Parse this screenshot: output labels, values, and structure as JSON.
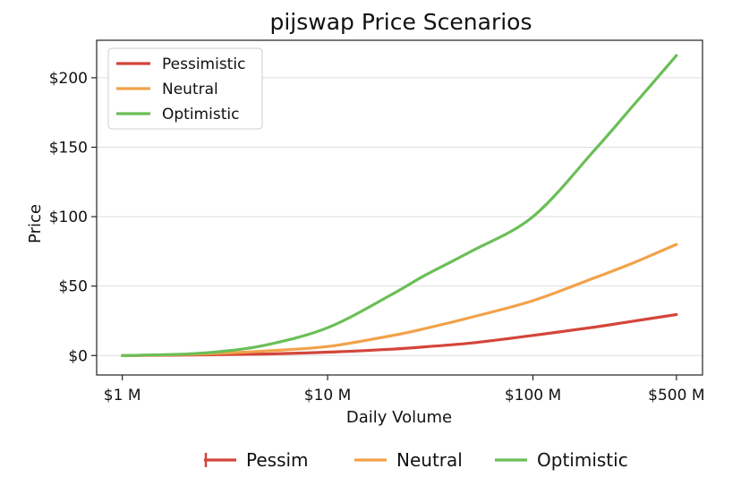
{
  "chart_data": {
    "type": "line",
    "title": "pijswap Price Scenarios",
    "xlabel": "Daily Volume",
    "ylabel": "Price",
    "x_scale": "log",
    "x_ticks": [
      {
        "value": 1,
        "label": "$1 M"
      },
      {
        "value": 10,
        "label": "$10 M"
      },
      {
        "value": 100,
        "label": "$100 M"
      },
      {
        "value": 500,
        "label": "$500 M"
      }
    ],
    "y_ticks": [
      {
        "value": 0,
        "label": "$0"
      },
      {
        "value": 50,
        "label": "$50"
      },
      {
        "value": 100,
        "label": "$100"
      },
      {
        "value": 150,
        "label": "$150"
      },
      {
        "value": 200,
        "label": "$200"
      }
    ],
    "ylim": [
      -14,
      227
    ],
    "xlim": [
      0.75,
      670
    ],
    "grid": "horizontal",
    "legend_position": "top-left",
    "x": [
      1,
      2,
      3,
      5,
      10,
      20,
      30,
      50,
      100,
      200,
      300,
      500
    ],
    "series": [
      {
        "name": "Pessimistic",
        "color": "#d4453a",
        "values": [
          0,
          0.3,
          0.6,
          1.1,
          2.4,
          4.5,
          6.3,
          9.0,
          14.5,
          20.5,
          24.5,
          29.5
        ]
      },
      {
        "name": "Neutral",
        "color": "#f2a24a",
        "values": [
          0,
          0.7,
          1.6,
          3.3,
          6.5,
          14,
          19.5,
          27.5,
          39.5,
          56,
          66,
          80
        ]
      },
      {
        "name": "Optimistic",
        "color": "#6abf57",
        "values": [
          0,
          1.0,
          2.8,
          7.5,
          20,
          43,
          58,
          75,
          100,
          148,
          178,
          216
        ]
      }
    ],
    "bottom_legend": [
      {
        "label": "Pessim",
        "color": "#d4453a"
      },
      {
        "label": "Neutral",
        "color": "#f2a24a"
      },
      {
        "label": "Optimistic",
        "color": "#6abf57"
      }
    ]
  }
}
